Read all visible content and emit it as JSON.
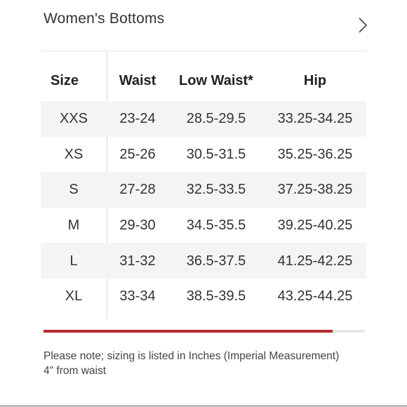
{
  "header": {
    "title": "Women's Bottoms",
    "next_icon": "chevron-right-icon"
  },
  "table": {
    "headers": {
      "size": "Size",
      "waist": "Waist",
      "low_waist": "Low Waist*",
      "hip": "Hip"
    },
    "rows": [
      {
        "size": "XXS",
        "waist": "23-24",
        "low_waist": "28.5-29.5",
        "hip": "33.25-34.25"
      },
      {
        "size": "XS",
        "waist": "25-26",
        "low_waist": "30.5-31.5",
        "hip": "35.25-36.25"
      },
      {
        "size": "S",
        "waist": "27-28",
        "low_waist": "32.5-33.5",
        "hip": "37.25-38.25"
      },
      {
        "size": "M",
        "waist": "29-30",
        "low_waist": "34.5-35.5",
        "hip": "39.25-40.25"
      },
      {
        "size": "L",
        "waist": "31-32",
        "low_waist": "36.5-37.5",
        "hip": "41.25-42.25"
      },
      {
        "size": "XL",
        "waist": "33-34",
        "low_waist": "38.5-39.5",
        "hip": "43.25-44.25"
      }
    ]
  },
  "scroll_progress": {
    "fraction": 0.9,
    "fill_color": "#b52a30",
    "track_color": "#e6e6e6"
  },
  "note": {
    "line1": "Please note; sizing is listed in Inches (Imperial Measurement)",
    "line2": "4\" from waist"
  }
}
